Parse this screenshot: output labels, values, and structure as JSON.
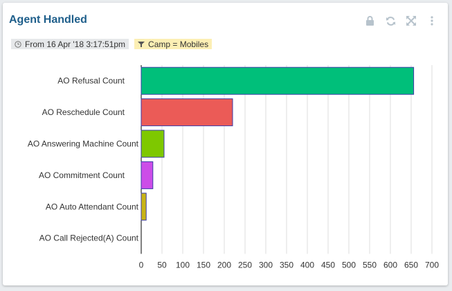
{
  "widget": {
    "title": "Agent Handled",
    "date_filter": "From 16 Apr '18 3:17:51pm",
    "camp_filter": "Camp = Mobiles",
    "toolbar": [
      "lock-icon",
      "refresh-icon",
      "expand-icon",
      "more-vertical-icon"
    ]
  },
  "colors": {
    "title": "#1f5f8b",
    "bar_stroke": "#3a3aa8",
    "grid": "#dddddd",
    "toolbar_icon": "#b7c3cc"
  },
  "chart_data": {
    "type": "bar",
    "orientation": "horizontal",
    "categories": [
      "AO Refusal Count",
      "AO Reschedule Count",
      "AO Answering Machine Count",
      "AO Commitment Count",
      "AO Auto Attendant Count",
      "AO Call Rejected(A) Count"
    ],
    "values": [
      656,
      220,
      55,
      28,
      12,
      0
    ],
    "bar_colors": [
      "#00bf7a",
      "#eb5b57",
      "#7ec800",
      "#cc4de8",
      "#c8b416",
      "#3a3aa8"
    ],
    "xlim": [
      0,
      700
    ],
    "xticks": [
      0,
      50,
      100,
      150,
      200,
      250,
      300,
      350,
      400,
      450,
      500,
      550,
      600,
      650,
      700
    ],
    "grid": true,
    "legend": "none"
  }
}
